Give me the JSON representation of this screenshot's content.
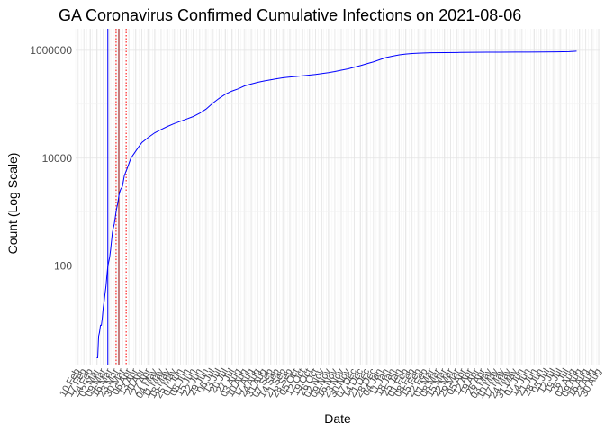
{
  "chart_data": {
    "type": "line",
    "title": "GA Coronavirus Confirmed Cumulative Infections on 2021-08-06",
    "xlabel": "Date",
    "ylabel": "Count (Log Scale)",
    "yscale": "log10",
    "ylim": [
      1.5,
      2500000
    ],
    "xlim": [
      "2020-02-08",
      "2021-08-31"
    ],
    "grid": true,
    "legend": "none",
    "y_ticks": [
      {
        "value": 100,
        "label": "100"
      },
      {
        "value": 10000,
        "label": "10000"
      },
      {
        "value": 1000000,
        "label": "1000000"
      }
    ],
    "x_tick_labels": [
      {
        "date": "2020-02-10",
        "label": "10 Feb"
      },
      {
        "date": "2020-02-17",
        "label": "17 Feb"
      },
      {
        "date": "2020-02-24",
        "label": "24 Feb"
      },
      {
        "date": "2020-03-02",
        "label": "02 Mar"
      },
      {
        "date": "2020-03-09",
        "label": "09 Mar"
      },
      {
        "date": "2020-03-16",
        "label": "16 Mar"
      },
      {
        "date": "2020-03-23",
        "label": "23 Mar"
      },
      {
        "date": "2020-03-30",
        "label": "30 Mar"
      },
      {
        "date": "2020-04-06",
        "label": "06 Apr"
      },
      {
        "date": "2020-04-13",
        "label": "13 Apr"
      },
      {
        "date": "2020-04-20",
        "label": "20 Apr"
      },
      {
        "date": "2020-04-27",
        "label": "27 Apr"
      },
      {
        "date": "2020-05-04",
        "label": "04 May"
      },
      {
        "date": "2020-05-11",
        "label": "11 May"
      },
      {
        "date": "2020-05-18",
        "label": "18 May"
      },
      {
        "date": "2020-05-25",
        "label": "25 May"
      },
      {
        "date": "2020-06-01",
        "label": "01 Jun"
      },
      {
        "date": "2020-06-08",
        "label": "08 Jun"
      },
      {
        "date": "2020-06-15",
        "label": "15 Jun"
      },
      {
        "date": "2020-06-22",
        "label": "22 Jun"
      },
      {
        "date": "2020-06-29",
        "label": "29 Jun"
      },
      {
        "date": "2020-07-06",
        "label": "06 Jul"
      },
      {
        "date": "2020-07-13",
        "label": "13 Jul"
      },
      {
        "date": "2020-07-20",
        "label": "20 Jul"
      },
      {
        "date": "2020-07-27",
        "label": "27 Jul"
      },
      {
        "date": "2020-08-03",
        "label": "03 Aug"
      },
      {
        "date": "2020-08-10",
        "label": "10 Aug"
      },
      {
        "date": "2020-08-17",
        "label": "17 Aug"
      },
      {
        "date": "2020-08-24",
        "label": "24 Aug"
      },
      {
        "date": "2020-08-31",
        "label": "31 Aug"
      },
      {
        "date": "2020-09-07",
        "label": "07 Sep"
      },
      {
        "date": "2020-09-14",
        "label": "14 Sep"
      },
      {
        "date": "2020-09-21",
        "label": "21 Sep"
      },
      {
        "date": "2020-09-28",
        "label": "28 Sep"
      },
      {
        "date": "2020-10-05",
        "label": "05 Oct"
      },
      {
        "date": "2020-10-12",
        "label": "12 Oct"
      },
      {
        "date": "2020-10-19",
        "label": "19 Oct"
      },
      {
        "date": "2020-10-26",
        "label": "26 Oct"
      },
      {
        "date": "2020-11-02",
        "label": "02 Nov"
      },
      {
        "date": "2020-11-09",
        "label": "09 Nov"
      },
      {
        "date": "2020-11-16",
        "label": "16 Nov"
      },
      {
        "date": "2020-11-23",
        "label": "23 Nov"
      },
      {
        "date": "2020-11-30",
        "label": "30 Nov"
      },
      {
        "date": "2020-12-07",
        "label": "07 Dec"
      },
      {
        "date": "2020-12-14",
        "label": "14 Dec"
      },
      {
        "date": "2020-12-21",
        "label": "21 Dec"
      },
      {
        "date": "2020-12-28",
        "label": "28 Dec"
      },
      {
        "date": "2021-01-04",
        "label": "04 Jan"
      },
      {
        "date": "2021-01-11",
        "label": "11 Jan"
      },
      {
        "date": "2021-01-18",
        "label": "18 Jan"
      },
      {
        "date": "2021-01-25",
        "label": "25 Jan"
      },
      {
        "date": "2021-02-01",
        "label": "01 Feb"
      },
      {
        "date": "2021-02-08",
        "label": "08 Feb"
      },
      {
        "date": "2021-02-15",
        "label": "15 Feb"
      },
      {
        "date": "2021-02-22",
        "label": "22 Feb"
      },
      {
        "date": "2021-03-01",
        "label": "01 Mar"
      },
      {
        "date": "2021-03-08",
        "label": "08 Mar"
      },
      {
        "date": "2021-03-15",
        "label": "15 Mar"
      },
      {
        "date": "2021-03-22",
        "label": "22 Mar"
      },
      {
        "date": "2021-03-29",
        "label": "29 Mar"
      },
      {
        "date": "2021-04-05",
        "label": "05 Apr"
      },
      {
        "date": "2021-04-12",
        "label": "12 Apr"
      },
      {
        "date": "2021-04-19",
        "label": "19 Apr"
      },
      {
        "date": "2021-04-26",
        "label": "26 Apr"
      },
      {
        "date": "2021-05-03",
        "label": "03 May"
      },
      {
        "date": "2021-05-10",
        "label": "10 May"
      },
      {
        "date": "2021-05-17",
        "label": "17 May"
      },
      {
        "date": "2021-05-24",
        "label": "24 May"
      },
      {
        "date": "2021-05-31",
        "label": "31 May"
      },
      {
        "date": "2021-06-07",
        "label": "07 Jun"
      },
      {
        "date": "2021-06-14",
        "label": "14 Jun"
      },
      {
        "date": "2021-06-21",
        "label": "21 Jun"
      },
      {
        "date": "2021-06-28",
        "label": "28 Jun"
      },
      {
        "date": "2021-07-05",
        "label": "05 Jul"
      },
      {
        "date": "2021-07-12",
        "label": "12 Jul"
      },
      {
        "date": "2021-07-19",
        "label": "19 Jul"
      },
      {
        "date": "2021-07-26",
        "label": "26 Jul"
      },
      {
        "date": "2021-08-02",
        "label": "02 Aug"
      },
      {
        "date": "2021-08-09",
        "label": "09 Aug"
      },
      {
        "date": "2021-08-16",
        "label": "16 Aug"
      },
      {
        "date": "2021-08-23",
        "label": "23 Aug"
      },
      {
        "date": "2021-08-30",
        "label": "30 Aug"
      }
    ],
    "series": [
      {
        "color": "#0000ff",
        "points": [
          {
            "x": "2020-03-02",
            "y": 2
          },
          {
            "x": "2020-03-03",
            "y": 2
          },
          {
            "x": "2020-03-04",
            "y": 5
          },
          {
            "x": "2020-03-05",
            "y": 6
          },
          {
            "x": "2020-03-06",
            "y": 8
          },
          {
            "x": "2020-03-07",
            "y": 8
          },
          {
            "x": "2020-03-08",
            "y": 11
          },
          {
            "x": "2020-03-09",
            "y": 17
          },
          {
            "x": "2020-03-10",
            "y": 22
          },
          {
            "x": "2020-03-11",
            "y": 31
          },
          {
            "x": "2020-03-12",
            "y": 42
          },
          {
            "x": "2020-03-13",
            "y": 66
          },
          {
            "x": "2020-03-14",
            "y": 99
          },
          {
            "x": "2020-03-15",
            "y": 121
          },
          {
            "x": "2020-03-16",
            "y": 146
          },
          {
            "x": "2020-03-17",
            "y": 197
          },
          {
            "x": "2020-03-18",
            "y": 287
          },
          {
            "x": "2020-03-19",
            "y": 420
          },
          {
            "x": "2020-03-20",
            "y": 507
          },
          {
            "x": "2020-03-21",
            "y": 600
          },
          {
            "x": "2020-03-22",
            "y": 772
          },
          {
            "x": "2020-03-23",
            "y": 1026
          },
          {
            "x": "2020-03-24",
            "y": 1247
          },
          {
            "x": "2020-03-25",
            "y": 1525
          },
          {
            "x": "2020-03-26",
            "y": 2000
          },
          {
            "x": "2020-03-27",
            "y": 2366
          },
          {
            "x": "2020-03-28",
            "y": 2651
          },
          {
            "x": "2020-03-29",
            "y": 2808
          },
          {
            "x": "2020-03-30",
            "y": 3032
          },
          {
            "x": "2020-04-01",
            "y": 4748
          },
          {
            "x": "2020-04-04",
            "y": 6383
          },
          {
            "x": "2020-04-08",
            "y": 9901
          },
          {
            "x": "2020-04-12",
            "y": 12452
          },
          {
            "x": "2020-04-16",
            "y": 15669
          },
          {
            "x": "2020-04-20",
            "y": 19407
          },
          {
            "x": "2020-04-27",
            "y": 24200
          },
          {
            "x": "2020-05-04",
            "y": 29451
          },
          {
            "x": "2020-05-11",
            "y": 33903
          },
          {
            "x": "2020-05-18",
            "y": 38721
          },
          {
            "x": "2020-05-25",
            "y": 43586
          },
          {
            "x": "2020-06-01",
            "y": 48207
          },
          {
            "x": "2020-06-08",
            "y": 53249
          },
          {
            "x": "2020-06-15",
            "y": 59078
          },
          {
            "x": "2020-06-22",
            "y": 68049
          },
          {
            "x": "2020-06-29",
            "y": 81291
          },
          {
            "x": "2020-07-06",
            "y": 103840
          },
          {
            "x": "2020-07-13",
            "y": 127834
          },
          {
            "x": "2020-07-20",
            "y": 153010
          },
          {
            "x": "2020-07-27",
            "y": 175052
          },
          {
            "x": "2020-08-03",
            "y": 193177
          },
          {
            "x": "2020-08-10",
            "y": 219025
          },
          {
            "x": "2020-08-17",
            "y": 236731
          },
          {
            "x": "2020-08-24",
            "y": 254000
          },
          {
            "x": "2020-08-31",
            "y": 268973
          },
          {
            "x": "2020-09-07",
            "y": 283000
          },
          {
            "x": "2020-09-14",
            "y": 297000
          },
          {
            "x": "2020-09-21",
            "y": 309000
          },
          {
            "x": "2020-09-28",
            "y": 319000
          },
          {
            "x": "2020-10-05",
            "y": 327000
          },
          {
            "x": "2020-10-12",
            "y": 336000
          },
          {
            "x": "2020-10-19",
            "y": 345000
          },
          {
            "x": "2020-10-26",
            "y": 356000
          },
          {
            "x": "2020-11-02",
            "y": 370000
          },
          {
            "x": "2020-11-09",
            "y": 385000
          },
          {
            "x": "2020-11-16",
            "y": 404000
          },
          {
            "x": "2020-11-23",
            "y": 427000
          },
          {
            "x": "2020-11-30",
            "y": 450000
          },
          {
            "x": "2020-12-07",
            "y": 484000
          },
          {
            "x": "2020-12-14",
            "y": 520000
          },
          {
            "x": "2020-12-21",
            "y": 565000
          },
          {
            "x": "2020-12-28",
            "y": 610000
          },
          {
            "x": "2021-01-04",
            "y": 670000
          },
          {
            "x": "2021-01-11",
            "y": 735000
          },
          {
            "x": "2021-01-18",
            "y": 780000
          },
          {
            "x": "2021-01-25",
            "y": 820000
          },
          {
            "x": "2021-02-01",
            "y": 850000
          },
          {
            "x": "2021-02-08",
            "y": 870000
          },
          {
            "x": "2021-02-15",
            "y": 883000
          },
          {
            "x": "2021-02-22",
            "y": 892000
          },
          {
            "x": "2021-03-01",
            "y": 898000
          },
          {
            "x": "2021-03-15",
            "y": 905000
          },
          {
            "x": "2021-04-01",
            "y": 910000
          },
          {
            "x": "2021-04-15",
            "y": 915000
          },
          {
            "x": "2021-05-01",
            "y": 920000
          },
          {
            "x": "2021-05-15",
            "y": 923000
          },
          {
            "x": "2021-06-01",
            "y": 925000
          },
          {
            "x": "2021-06-15",
            "y": 927000
          },
          {
            "x": "2021-07-01",
            "y": 929000
          },
          {
            "x": "2021-07-15",
            "y": 933000
          },
          {
            "x": "2021-07-22",
            "y": 938000
          },
          {
            "x": "2021-07-29",
            "y": 945000
          },
          {
            "x": "2021-08-06",
            "y": 960000
          }
        ]
      }
    ],
    "reference_lines": [
      {
        "x": "2020-03-14",
        "color": "#0000ff",
        "style": "solid"
      },
      {
        "x": "2020-03-23",
        "color": "#ff0000",
        "style": "dotted"
      },
      {
        "x": "2020-03-26",
        "color": "#8b0000",
        "style": "solid"
      },
      {
        "x": "2020-04-03",
        "color": "#ff0000",
        "style": "dotted"
      },
      {
        "x": "2020-04-18",
        "color": "#ffb6c1",
        "style": "dotted"
      }
    ]
  }
}
